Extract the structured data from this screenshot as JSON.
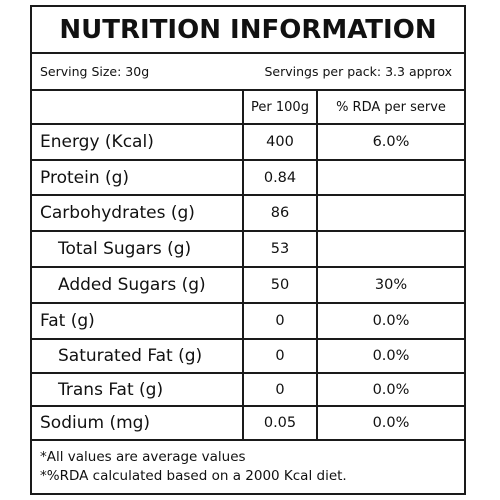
{
  "title": "NUTRITION INFORMATION",
  "serving_size": "Serving Size: 30g",
  "servings_per_pack": "Servings per pack: 3.3 approx",
  "columns": [
    "",
    "Per 100g",
    "% RDA per serve"
  ],
  "rows": [
    {
      "name": "Energy (Kcal)",
      "per100g": "400",
      "rda": "6.0%",
      "indent": false
    },
    {
      "name": "Protein (g)",
      "per100g": "0.84",
      "rda": "",
      "indent": false
    },
    {
      "name": "Carbohydrates (g)",
      "per100g": "86",
      "rda": "",
      "indent": false
    },
    {
      "name": "Total Sugars (g)",
      "per100g": "53",
      "rda": "",
      "indent": true
    },
    {
      "name": "Added Sugars (g)",
      "per100g": "50",
      "rda": "30%",
      "indent": true
    },
    {
      "name": "Fat (g)",
      "per100g": "0",
      "rda": "0.0%",
      "indent": false
    },
    {
      "name": "Saturated Fat (g)",
      "per100g": "0",
      "rda": "0.0%",
      "indent": true
    },
    {
      "name": "Trans Fat (g)",
      "per100g": "0",
      "rda": "0.0%",
      "indent": true
    },
    {
      "name": "Sodium (mg)",
      "per100g": "0.05",
      "rda": "0.0%",
      "indent": false
    }
  ],
  "notes": [
    "*All values are average values",
    "*%RDA calculated based on a 2000 Kcal diet."
  ]
}
